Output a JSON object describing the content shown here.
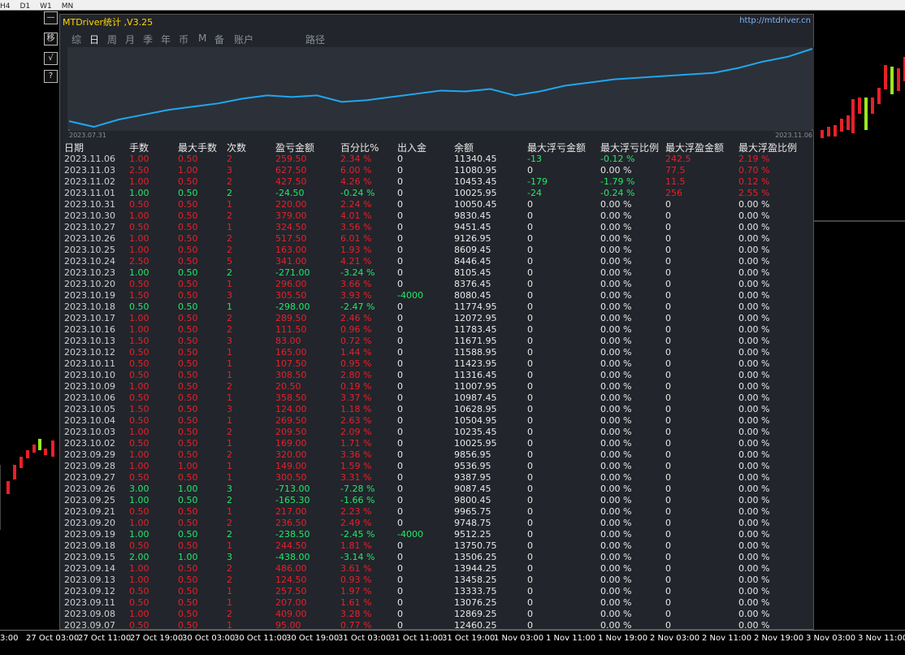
{
  "toolbar": {
    "labels": [
      "H4",
      "D1",
      "W1",
      "MN"
    ]
  },
  "window": {
    "title": "MTDriver统计 ,V3.25",
    "url": "http://mtdriver.cn",
    "tabs": [
      "综",
      "日",
      "周",
      "月",
      "季",
      "年",
      "币",
      "M",
      "备",
      "账户",
      "路径"
    ],
    "side_buttons": [
      "—",
      "移",
      "√",
      "?"
    ]
  },
  "chart_data": {
    "type": "line",
    "x": [
      0,
      1,
      2,
      3,
      4,
      5,
      6,
      7,
      8,
      9,
      10,
      11,
      12,
      13,
      14,
      15,
      16,
      17,
      18,
      19,
      20,
      21,
      22,
      23,
      24,
      25,
      26,
      27,
      28,
      29,
      30
    ],
    "xlim": [
      0,
      30
    ],
    "xticks": [
      {
        "value": 0,
        "label": "2023.07.31"
      },
      {
        "value": 30,
        "label": "2023.11.06"
      }
    ],
    "ylim": [
      0,
      100
    ],
    "series": [
      {
        "color": "#1ea7f0",
        "values": [
          10,
          3,
          12,
          18,
          24,
          28,
          32,
          38,
          42,
          40,
          42,
          34,
          36,
          40,
          44,
          48,
          47,
          50,
          42,
          47,
          54,
          58,
          62,
          64,
          66,
          68,
          70,
          76,
          84,
          90,
          100
        ]
      }
    ]
  },
  "table": {
    "profit_color": "#e8202a",
    "loss_color": "#22e86a",
    "columns": [
      "日期",
      "手数",
      "最大手数",
      "次数",
      "盈亏金额",
      "百分比%",
      "出入金",
      "余额",
      "最大浮亏金额",
      "最大浮亏比例",
      "最大浮盈金额",
      "最大浮盈比例"
    ],
    "rows": [
      [
        "2023.11.06",
        "1.00",
        "0.50",
        "2",
        "259.50",
        "2.34 %",
        "0",
        "11340.45",
        "-13",
        "-0.12 %",
        "242.5",
        "2.19 %"
      ],
      [
        "2023.11.03",
        "2.50",
        "1.00",
        "3",
        "627.50",
        "6.00 %",
        "0",
        "11080.95",
        "0",
        "0.00 %",
        "77.5",
        "0.70 %"
      ],
      [
        "2023.11.02",
        "1.00",
        "0.50",
        "2",
        "427.50",
        "4.26 %",
        "0",
        "10453.45",
        "-179",
        "-1.79 %",
        "11.5",
        "0.12 %"
      ],
      [
        "2023.11.01",
        "1.00",
        "0.50",
        "2",
        "-24.50",
        "-0.24 %",
        "0",
        "10025.95",
        "-24",
        "-0.24 %",
        "256",
        "2.55 %"
      ],
      [
        "2023.10.31",
        "0.50",
        "0.50",
        "1",
        "220.00",
        "2.24 %",
        "0",
        "10050.45",
        "0",
        "0.00 %",
        "0",
        "0.00 %"
      ],
      [
        "2023.10.30",
        "1.00",
        "0.50",
        "2",
        "379.00",
        "4.01 %",
        "0",
        "9830.45",
        "0",
        "0.00 %",
        "0",
        "0.00 %"
      ],
      [
        "2023.10.27",
        "0.50",
        "0.50",
        "1",
        "324.50",
        "3.56 %",
        "0",
        "9451.45",
        "0",
        "0.00 %",
        "0",
        "0.00 %"
      ],
      [
        "2023.10.26",
        "1.00",
        "0.50",
        "2",
        "517.50",
        "6.01 %",
        "0",
        "9126.95",
        "0",
        "0.00 %",
        "0",
        "0.00 %"
      ],
      [
        "2023.10.25",
        "1.00",
        "0.50",
        "2",
        "163.00",
        "1.93 %",
        "0",
        "8609.45",
        "0",
        "0.00 %",
        "0",
        "0.00 %"
      ],
      [
        "2023.10.24",
        "2.50",
        "0.50",
        "5",
        "341.00",
        "4.21 %",
        "0",
        "8446.45",
        "0",
        "0.00 %",
        "0",
        "0.00 %"
      ],
      [
        "2023.10.23",
        "1.00",
        "0.50",
        "2",
        "-271.00",
        "-3.24 %",
        "0",
        "8105.45",
        "0",
        "0.00 %",
        "0",
        "0.00 %"
      ],
      [
        "2023.10.20",
        "0.50",
        "0.50",
        "1",
        "296.00",
        "3.66 %",
        "0",
        "8376.45",
        "0",
        "0.00 %",
        "0",
        "0.00 %"
      ],
      [
        "2023.10.19",
        "1.50",
        "0.50",
        "3",
        "305.50",
        "3.93 %",
        "-4000",
        "8080.45",
        "0",
        "0.00 %",
        "0",
        "0.00 %"
      ],
      [
        "2023.10.18",
        "0.50",
        "0.50",
        "1",
        "-298.00",
        "-2.47 %",
        "0",
        "11774.95",
        "0",
        "0.00 %",
        "0",
        "0.00 %"
      ],
      [
        "2023.10.17",
        "1.00",
        "0.50",
        "2",
        "289.50",
        "2.46 %",
        "0",
        "12072.95",
        "0",
        "0.00 %",
        "0",
        "0.00 %"
      ],
      [
        "2023.10.16",
        "1.00",
        "0.50",
        "2",
        "111.50",
        "0.96 %",
        "0",
        "11783.45",
        "0",
        "0.00 %",
        "0",
        "0.00 %"
      ],
      [
        "2023.10.13",
        "1.50",
        "0.50",
        "3",
        "83.00",
        "0.72 %",
        "0",
        "11671.95",
        "0",
        "0.00 %",
        "0",
        "0.00 %"
      ],
      [
        "2023.10.12",
        "0.50",
        "0.50",
        "1",
        "165.00",
        "1.44 %",
        "0",
        "11588.95",
        "0",
        "0.00 %",
        "0",
        "0.00 %"
      ],
      [
        "2023.10.11",
        "0.50",
        "0.50",
        "1",
        "107.50",
        "0.95 %",
        "0",
        "11423.95",
        "0",
        "0.00 %",
        "0",
        "0.00 %"
      ],
      [
        "2023.10.10",
        "0.50",
        "0.50",
        "1",
        "308.50",
        "2.80 %",
        "0",
        "11316.45",
        "0",
        "0.00 %",
        "0",
        "0.00 %"
      ],
      [
        "2023.10.09",
        "1.00",
        "0.50",
        "2",
        "20.50",
        "0.19 %",
        "0",
        "11007.95",
        "0",
        "0.00 %",
        "0",
        "0.00 %"
      ],
      [
        "2023.10.06",
        "0.50",
        "0.50",
        "1",
        "358.50",
        "3.37 %",
        "0",
        "10987.45",
        "0",
        "0.00 %",
        "0",
        "0.00 %"
      ],
      [
        "2023.10.05",
        "1.50",
        "0.50",
        "3",
        "124.00",
        "1.18 %",
        "0",
        "10628.95",
        "0",
        "0.00 %",
        "0",
        "0.00 %"
      ],
      [
        "2023.10.04",
        "0.50",
        "0.50",
        "1",
        "269.50",
        "2.63 %",
        "0",
        "10504.95",
        "0",
        "0.00 %",
        "0",
        "0.00 %"
      ],
      [
        "2023.10.03",
        "1.00",
        "0.50",
        "2",
        "209.50",
        "2.09 %",
        "0",
        "10235.45",
        "0",
        "0.00 %",
        "0",
        "0.00 %"
      ],
      [
        "2023.10.02",
        "0.50",
        "0.50",
        "1",
        "169.00",
        "1.71 %",
        "0",
        "10025.95",
        "0",
        "0.00 %",
        "0",
        "0.00 %"
      ],
      [
        "2023.09.29",
        "1.00",
        "0.50",
        "2",
        "320.00",
        "3.36 %",
        "0",
        "9856.95",
        "0",
        "0.00 %",
        "0",
        "0.00 %"
      ],
      [
        "2023.09.28",
        "1.00",
        "1.00",
        "1",
        "149.00",
        "1.59 %",
        "0",
        "9536.95",
        "0",
        "0.00 %",
        "0",
        "0.00 %"
      ],
      [
        "2023.09.27",
        "0.50",
        "0.50",
        "1",
        "300.50",
        "3.31 %",
        "0",
        "9387.95",
        "0",
        "0.00 %",
        "0",
        "0.00 %"
      ],
      [
        "2023.09.26",
        "3.00",
        "1.00",
        "3",
        "-713.00",
        "-7.28 %",
        "0",
        "9087.45",
        "0",
        "0.00 %",
        "0",
        "0.00 %"
      ],
      [
        "2023.09.25",
        "1.00",
        "0.50",
        "2",
        "-165.30",
        "-1.66 %",
        "0",
        "9800.45",
        "0",
        "0.00 %",
        "0",
        "0.00 %"
      ],
      [
        "2023.09.21",
        "0.50",
        "0.50",
        "1",
        "217.00",
        "2.23 %",
        "0",
        "9965.75",
        "0",
        "0.00 %",
        "0",
        "0.00 %"
      ],
      [
        "2023.09.20",
        "1.00",
        "0.50",
        "2",
        "236.50",
        "2.49 %",
        "0",
        "9748.75",
        "0",
        "0.00 %",
        "0",
        "0.00 %"
      ],
      [
        "2023.09.19",
        "1.00",
        "0.50",
        "2",
        "-238.50",
        "-2.45 %",
        "-4000",
        "9512.25",
        "0",
        "0.00 %",
        "0",
        "0.00 %"
      ],
      [
        "2023.09.18",
        "0.50",
        "0.50",
        "1",
        "244.50",
        "1.81 %",
        "0",
        "13750.75",
        "0",
        "0.00 %",
        "0",
        "0.00 %"
      ],
      [
        "2023.09.15",
        "2.00",
        "1.00",
        "3",
        "-438.00",
        "-3.14 %",
        "0",
        "13506.25",
        "0",
        "0.00 %",
        "0",
        "0.00 %"
      ],
      [
        "2023.09.14",
        "1.00",
        "0.50",
        "2",
        "486.00",
        "3.61 %",
        "0",
        "13944.25",
        "0",
        "0.00 %",
        "0",
        "0.00 %"
      ],
      [
        "2023.09.13",
        "1.00",
        "0.50",
        "2",
        "124.50",
        "0.93 %",
        "0",
        "13458.25",
        "0",
        "0.00 %",
        "0",
        "0.00 %"
      ],
      [
        "2023.09.12",
        "0.50",
        "0.50",
        "1",
        "257.50",
        "1.97 %",
        "0",
        "13333.75",
        "0",
        "0.00 %",
        "0",
        "0.00 %"
      ],
      [
        "2023.09.11",
        "0.50",
        "0.50",
        "1",
        "207.00",
        "1.61 %",
        "0",
        "13076.25",
        "0",
        "0.00 %",
        "0",
        "0.00 %"
      ],
      [
        "2023.09.08",
        "1.00",
        "0.50",
        "2",
        "409.00",
        "3.28 %",
        "0",
        "12869.25",
        "0",
        "0.00 %",
        "0",
        "0.00 %"
      ],
      [
        "2023.09.07",
        "0.50",
        "0.50",
        "1",
        "95.00",
        "0.77 %",
        "0",
        "12460.25",
        "0",
        "0.00 %",
        "0",
        "0.00 %"
      ]
    ]
  },
  "time_axis": {
    "labels": [
      "3:00",
      "27 Oct 03:00",
      "27 Oct 11:00",
      "27 Oct 19:00",
      "30 Oct 03:00",
      "30 Oct 11:00",
      "30 Oct 19:00",
      "31 Oct 03:00",
      "31 Oct 11:00",
      "31 Oct 19:00",
      "1 Nov 03:00",
      "1 Nov 11:00",
      "1 Nov 19:00",
      "2 Nov 03:00",
      "2 Nov 11:00",
      "2 Nov 19:00",
      "3 Nov 03:00",
      "3 Nov 11:00"
    ]
  }
}
